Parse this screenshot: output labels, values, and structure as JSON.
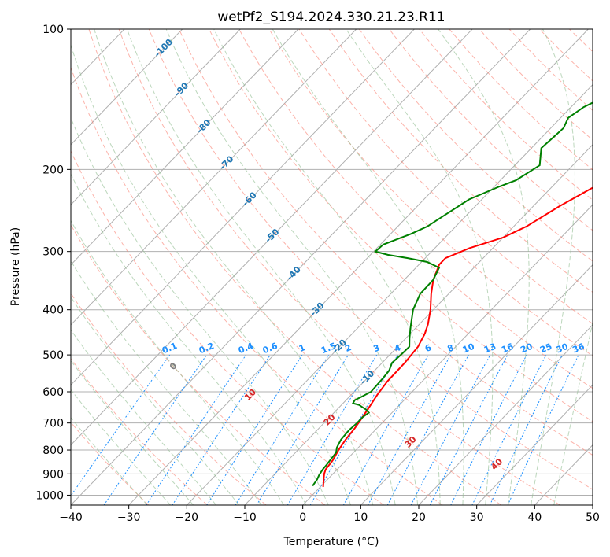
{
  "chart_data": {
    "type": "line",
    "title": "wetPf2_S194.2024.330.21.23.R11",
    "xlabel": "Temperature (°C)",
    "ylabel": "Pressure (hPa)",
    "xlim": [
      -40,
      50
    ],
    "ylim": [
      1050,
      100
    ],
    "y_scale": "log",
    "grid": true,
    "xticks": [
      -40,
      -30,
      -20,
      -10,
      0,
      10,
      20,
      30,
      40,
      50
    ],
    "xtick_labels": [
      "−40",
      "−30",
      "−20",
      "−10",
      "0",
      "10",
      "20",
      "30",
      "40",
      "50"
    ],
    "yticks": [
      100,
      200,
      300,
      400,
      500,
      600,
      700,
      800,
      900,
      1000
    ],
    "ytick_labels": [
      "100",
      "200",
      "300",
      "400",
      "500",
      "600",
      "700",
      "800",
      "900",
      "1000"
    ],
    "colors": {
      "temperature": "#ff0000",
      "dewpoint": "#008000",
      "dry_adiabat": "#fa8072",
      "moist_adiabat": "#8fbc8f",
      "mixing_ratio": "#1e90ff",
      "isotherm_label": "#1f77b4",
      "lcl_label": "#808080",
      "warm_label": "#d62728",
      "grid": "#b0b0b0"
    },
    "series": [
      {
        "key": "temperature",
        "x": [
          0.5,
          -0.5,
          -1.5,
          -2,
          -2.3,
          -3,
          -3.5,
          -3.8,
          -4.2,
          -4.8,
          -5.5,
          -6,
          -6.1,
          -6.5,
          -7.5,
          -8.5,
          -10.5,
          -13,
          -15,
          -16.5,
          -16.5,
          -14,
          -10,
          -7.8,
          -5.5,
          -3,
          0,
          2,
          4,
          7,
          10,
          13,
          15,
          18,
          21
        ],
        "y": [
          960,
          930,
          900,
          880,
          840,
          800,
          760,
          720,
          690,
          650,
          610,
          570,
          520,
          480,
          450,
          430,
          400,
          370,
          345,
          320,
          310,
          295,
          280,
          265,
          240,
          220,
          200,
          180,
          165,
          150,
          137,
          125,
          118,
          110,
          100
        ]
      },
      {
        "key": "dewpoint",
        "x": [
          -1.5,
          -1.8,
          -2.2,
          -2.5,
          -2.6,
          -3,
          -3.7,
          -4.3,
          -4.5,
          -4.3,
          -4.3,
          -4,
          -5,
          -7,
          -8.3,
          -8.5,
          -7.9,
          -7.1,
          -7.2,
          -7.3,
          -7.5,
          -8.3,
          -8.1,
          -8,
          -9.4,
          -11.1,
          -13.5,
          -14.9,
          -15,
          -16,
          -19,
          -23,
          -27,
          -29.7,
          -29.5,
          -26.5,
          -24.9,
          -23.9,
          -22.2,
          -19.2,
          -17.3,
          -15.7,
          -17.3,
          -18.3,
          -18,
          -17.8,
          -18.7,
          -17.8,
          -16,
          -14,
          -12,
          -10,
          -8,
          -6,
          -4
        ],
        "y": [
          955,
          925,
          905,
          880,
          860,
          810,
          790,
          760,
          725,
          700,
          680,
          665,
          655,
          640,
          635,
          625,
          615,
          600,
          580,
          560,
          540,
          520,
          500,
          480,
          460,
          435,
          400,
          370,
          345,
          325,
          316,
          310,
          305,
          300,
          290,
          275,
          265,
          252,
          232,
          218,
          211,
          196,
          186,
          180,
          170,
          163,
          155,
          147,
          140,
          135,
          130,
          125,
          119,
          113,
          100
        ]
      }
    ],
    "isotherm_labels": [
      "-100",
      "-90",
      "-80",
      "-70",
      "-60",
      "-50",
      "-40",
      "-30",
      "-20",
      "-10"
    ],
    "mixing_ratio_labels": [
      "0.1",
      "0.2",
      "0.4",
      "0.6",
      "1",
      "1.5",
      "2",
      "3",
      "4",
      "6",
      "8",
      "10",
      "13",
      "16",
      "20",
      "25",
      "30",
      "36"
    ],
    "dry_adiabat_labels": [
      "0",
      "10",
      "20",
      "30",
      "40"
    ]
  }
}
